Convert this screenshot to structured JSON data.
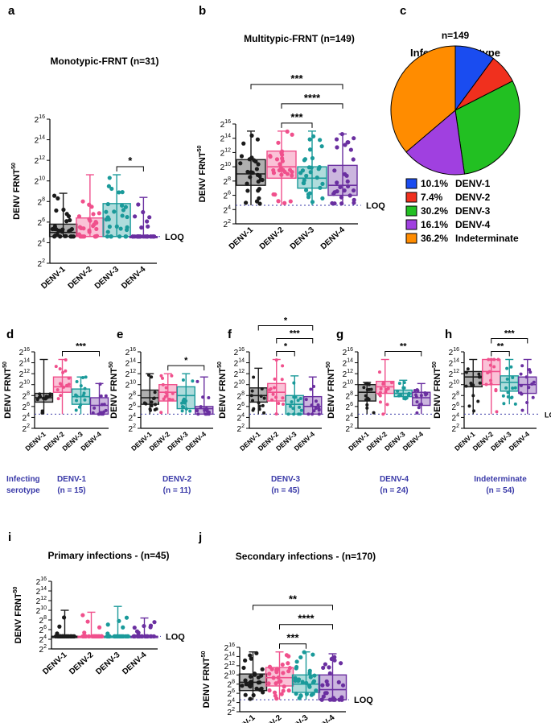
{
  "colors": {
    "DENV-1": "#1a1a1a",
    "DENV-2": "#f0508c",
    "DENV-3": "#1a9a9a",
    "DENV-4": "#6a2fa0",
    "indigo": "#3a3aa8"
  },
  "y_axis": {
    "label": "DENV FRNT",
    "label_sub": "50",
    "ticks": [
      "2",
      "2",
      "2",
      "2",
      "2",
      "2",
      "2",
      "2"
    ],
    "tick_exps": [
      "2",
      "4",
      "6",
      "8",
      "10",
      "12",
      "14",
      "16"
    ]
  },
  "loq_label": "LOQ",
  "categories": [
    "DENV-1",
    "DENV-2",
    "DENV-3",
    "DENV-4"
  ],
  "footer_labels": {
    "infecting": "Infecting",
    "serotype": "serotype"
  },
  "chart_data": [
    {
      "id": "a",
      "letter": "a",
      "type": "box",
      "title": "Monotypic-FRNT (n=31)",
      "ylim": [
        2,
        16
      ],
      "loq": 4.6,
      "series": [
        {
          "name": "DENV-1",
          "min": 4.6,
          "q1": 4.6,
          "median": 5.0,
          "q3": 5.8,
          "max": 8.8
        },
        {
          "name": "DENV-2",
          "min": 4.6,
          "q1": 4.6,
          "median": 4.6,
          "q3": 6.4,
          "max": 10.6
        },
        {
          "name": "DENV-3",
          "min": 4.6,
          "q1": 4.6,
          "median": 4.6,
          "q3": 7.8,
          "max": 10.6
        },
        {
          "name": "DENV-4",
          "min": 4.6,
          "q1": 4.6,
          "median": 4.6,
          "q3": 4.6,
          "max": 8.4
        }
      ],
      "annotations": [
        {
          "text": "*",
          "from": "DENV-3",
          "to": "DENV-4"
        }
      ]
    },
    {
      "id": "b",
      "letter": "b",
      "type": "box",
      "title": "Multitypic-FRNT (n=149)",
      "ylim": [
        2,
        16
      ],
      "loq": 4.6,
      "series": [
        {
          "name": "DENV-1",
          "min": 4.6,
          "q1": 7.4,
          "median": 9.0,
          "q3": 11.0,
          "max": 15.0
        },
        {
          "name": "DENV-2",
          "min": 4.6,
          "q1": 8.4,
          "median": 10.0,
          "q3": 12.2,
          "max": 15.0
        },
        {
          "name": "DENV-3",
          "min": 4.6,
          "q1": 7.0,
          "median": 8.4,
          "q3": 10.0,
          "max": 15.0
        },
        {
          "name": "DENV-4",
          "min": 4.6,
          "q1": 6.0,
          "median": 7.4,
          "q3": 10.2,
          "max": 14.6
        }
      ],
      "annotations": [
        {
          "text": "***",
          "from": "DENV-1",
          "to": "DENV-4"
        },
        {
          "text": "****",
          "from": "DENV-2",
          "to": "DENV-4"
        },
        {
          "text": "***",
          "from": "DENV-2",
          "to": "DENV-3"
        }
      ]
    },
    {
      "id": "c",
      "letter": "c",
      "type": "pie",
      "title_n": "n=149",
      "title": "Infecting serotype",
      "slices": [
        {
          "label": "DENV-1",
          "pct_label": "10.1%",
          "value": 10.1,
          "color": "#1a4cf0"
        },
        {
          "label": "DENV-2",
          "pct_label": "7.4%",
          "value": 7.4,
          "color": "#f0301e"
        },
        {
          "label": "DENV-3",
          "pct_label": "30.2%",
          "value": 30.2,
          "color": "#22c022"
        },
        {
          "label": "DENV-4",
          "pct_label": "16.1%",
          "value": 16.1,
          "color": "#a040e0"
        },
        {
          "label": "Indeterminate",
          "pct_label": "36.2%",
          "value": 36.2,
          "color": "#ff8c00"
        }
      ]
    },
    {
      "id": "d",
      "letter": "d",
      "type": "box",
      "ylim": [
        2,
        16
      ],
      "loq": 4.6,
      "footer": "DENV-1",
      "footer_n": "(n = 15)",
      "series": [
        {
          "name": "DENV-1",
          "min": 4.6,
          "q1": 6.8,
          "median": 7.6,
          "q3": 8.4,
          "max": 14.6
        },
        {
          "name": "DENV-2",
          "min": 4.6,
          "q1": 8.6,
          "median": 9.6,
          "q3": 11.4,
          "max": 14.6
        },
        {
          "name": "DENV-3",
          "min": 4.6,
          "q1": 6.4,
          "median": 7.8,
          "q3": 9.2,
          "max": 11.4
        },
        {
          "name": "DENV-4",
          "min": 4.6,
          "q1": 4.6,
          "median": 6.2,
          "q3": 7.6,
          "max": 10.2
        }
      ],
      "annotations": [
        {
          "text": "***",
          "from": "DENV-2",
          "to": "DENV-4"
        }
      ]
    },
    {
      "id": "e",
      "letter": "e",
      "type": "box",
      "ylim": [
        2,
        16
      ],
      "loq": 4.6,
      "footer": "DENV-2",
      "footer_n": "(n = 11)",
      "series": [
        {
          "name": "DENV-1",
          "min": 4.6,
          "q1": 6.4,
          "median": 7.6,
          "q3": 9.0,
          "max": 12.0
        },
        {
          "name": "DENV-2",
          "min": 4.6,
          "q1": 7.0,
          "median": 8.6,
          "q3": 10.0,
          "max": 12.0
        },
        {
          "name": "DENV-3",
          "min": 4.6,
          "q1": 5.6,
          "median": 8.0,
          "q3": 9.6,
          "max": 12.0
        },
        {
          "name": "DENV-4",
          "min": 4.6,
          "q1": 4.6,
          "median": 5.6,
          "q3": 6.0,
          "max": 11.4
        }
      ],
      "annotations": [
        {
          "text": "*",
          "from": "DENV-2",
          "to": "DENV-4"
        }
      ]
    },
    {
      "id": "f",
      "letter": "f",
      "type": "box",
      "ylim": [
        2,
        16
      ],
      "loq": 4.6,
      "footer": "DENV-3",
      "footer_n": "(n = 45)",
      "series": [
        {
          "name": "DENV-1",
          "min": 4.6,
          "q1": 6.8,
          "median": 8.0,
          "q3": 9.4,
          "max": 13.0
        },
        {
          "name": "DENV-2",
          "min": 4.6,
          "q1": 7.0,
          "median": 8.6,
          "q3": 10.2,
          "max": 14.6
        },
        {
          "name": "DENV-3",
          "min": 4.6,
          "q1": 4.6,
          "median": 6.4,
          "q3": 8.0,
          "max": 11.6
        },
        {
          "name": "DENV-4",
          "min": 4.6,
          "q1": 4.6,
          "median": 6.0,
          "q3": 7.8,
          "max": 11.4
        }
      ],
      "annotations": [
        {
          "text": "*",
          "from": "DENV-1",
          "to": "DENV-4"
        },
        {
          "text": "***",
          "from": "DENV-2",
          "to": "DENV-4"
        },
        {
          "text": "*",
          "from": "DENV-2",
          "to": "DENV-3"
        }
      ]
    },
    {
      "id": "g",
      "letter": "g",
      "type": "box",
      "ylim": [
        2,
        16
      ],
      "loq": 4.6,
      "footer": "DENV-4",
      "footer_n": "(n = 24)",
      "series": [
        {
          "name": "DENV-1",
          "min": 4.6,
          "q1": 7.0,
          "median": 8.6,
          "q3": 10.0,
          "max": 10.4
        },
        {
          "name": "DENV-2",
          "min": 4.6,
          "q1": 8.4,
          "median": 9.6,
          "q3": 10.6,
          "max": 14.6
        },
        {
          "name": "DENV-3",
          "min": 7.2,
          "q1": 7.8,
          "median": 8.4,
          "q3": 9.0,
          "max": 10.8
        },
        {
          "name": "DENV-4",
          "min": 4.6,
          "q1": 6.2,
          "median": 7.6,
          "q3": 8.6,
          "max": 10.2
        }
      ],
      "annotations": [
        {
          "text": "**",
          "from": "DENV-2",
          "to": "DENV-4"
        }
      ]
    },
    {
      "id": "h",
      "letter": "h",
      "type": "box",
      "ylim": [
        2,
        16
      ],
      "loq": 4.6,
      "footer": "Indeterminate",
      "footer_n": "(n = 54)",
      "series": [
        {
          "name": "DENV-1",
          "min": 4.6,
          "q1": 9.6,
          "median": 11.4,
          "q3": 12.4,
          "max": 14.6
        },
        {
          "name": "DENV-2",
          "min": 4.6,
          "q1": 10.0,
          "median": 12.4,
          "q3": 14.6,
          "max": 14.6
        },
        {
          "name": "DENV-3",
          "min": 6.4,
          "q1": 8.8,
          "median": 10.4,
          "q3": 11.6,
          "max": 14.6
        },
        {
          "name": "DENV-4",
          "min": 4.6,
          "q1": 8.4,
          "median": 10.0,
          "q3": 11.4,
          "max": 14.6
        }
      ],
      "annotations": [
        {
          "text": "***",
          "from": "DENV-2",
          "to": "DENV-4"
        },
        {
          "text": "**",
          "from": "DENV-2",
          "to": "DENV-3"
        }
      ]
    },
    {
      "id": "i",
      "letter": "i",
      "type": "box",
      "title": "Primary infections - (n=45)",
      "ylim": [
        2,
        16
      ],
      "loq": 4.6,
      "series": [
        {
          "name": "DENV-1",
          "min": 4.6,
          "q1": 4.6,
          "median": 4.6,
          "q3": 4.6,
          "max": 10.0
        },
        {
          "name": "DENV-2",
          "min": 4.6,
          "q1": 4.6,
          "median": 4.6,
          "q3": 4.6,
          "max": 9.6
        },
        {
          "name": "DENV-3",
          "min": 4.6,
          "q1": 4.6,
          "median": 4.6,
          "q3": 4.6,
          "max": 10.8
        },
        {
          "name": "DENV-4",
          "min": 4.6,
          "q1": 4.6,
          "median": 4.6,
          "q3": 4.6,
          "max": 8.4
        }
      ],
      "annotations": []
    },
    {
      "id": "j",
      "letter": "j",
      "type": "box",
      "title": "Secondary infections - (n=170)",
      "ylim": [
        2,
        16
      ],
      "loq": 4.6,
      "series": [
        {
          "name": "DENV-1",
          "min": 4.6,
          "q1": 6.6,
          "median": 8.4,
          "q3": 10.2,
          "max": 15.0
        },
        {
          "name": "DENV-2",
          "min": 4.6,
          "q1": 7.6,
          "median": 9.4,
          "q3": 11.6,
          "max": 15.0
        },
        {
          "name": "DENV-3",
          "min": 4.6,
          "q1": 6.2,
          "median": 8.0,
          "q3": 10.0,
          "max": 15.0
        },
        {
          "name": "DENV-4",
          "min": 4.6,
          "q1": 4.6,
          "median": 6.8,
          "q3": 10.0,
          "max": 14.6
        }
      ],
      "annotations": [
        {
          "text": "**",
          "from": "DENV-1",
          "to": "DENV-4"
        },
        {
          "text": "****",
          "from": "DENV-2",
          "to": "DENV-4"
        },
        {
          "text": "***",
          "from": "DENV-2",
          "to": "DENV-3"
        }
      ]
    }
  ]
}
